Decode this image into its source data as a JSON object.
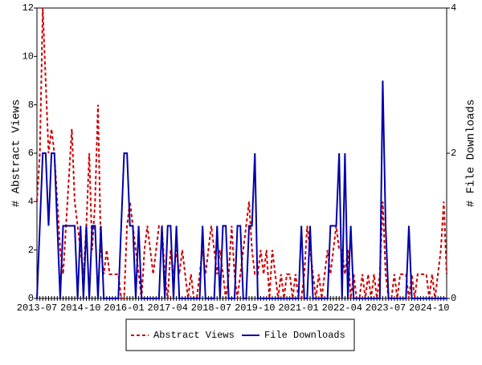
{
  "chart_data": {
    "type": "line",
    "y_label": "# Abstract Views",
    "y2_label": "# File Downloads",
    "categories": [
      "2013-07",
      null,
      null,
      null,
      null,
      null,
      null,
      null,
      null,
      null,
      null,
      null,
      null,
      null,
      null,
      "2014-10",
      null,
      null,
      null,
      null,
      null,
      null,
      null,
      null,
      null,
      null,
      null,
      null,
      null,
      null,
      "2016-01",
      null,
      null,
      null,
      null,
      null,
      null,
      null,
      null,
      null,
      null,
      null,
      null,
      null,
      null,
      "2017-04",
      null,
      null,
      null,
      null,
      null,
      null,
      null,
      null,
      null,
      null,
      null,
      null,
      null,
      null,
      "2018-07",
      null,
      null,
      null,
      null,
      null,
      null,
      null,
      null,
      null,
      null,
      null,
      null,
      null,
      null,
      "2019-10",
      null,
      null,
      null,
      null,
      null,
      null,
      null,
      null,
      null,
      null,
      null,
      null,
      null,
      null,
      "2021-01",
      null,
      null,
      null,
      null,
      null,
      null,
      null,
      null,
      null,
      null,
      null,
      null,
      null,
      null,
      "2022-04",
      null,
      null,
      null,
      null,
      null,
      null,
      null,
      null,
      null,
      null,
      null,
      null,
      null,
      null,
      "2023-07",
      null,
      null,
      null,
      null,
      null,
      null,
      null,
      null,
      null,
      null,
      null,
      null,
      null,
      null,
      "2024-10",
      null,
      null,
      null,
      null,
      null,
      null
    ],
    "series": [
      {
        "name": "Abstract Views",
        "color": "#cc0000",
        "dash": true,
        "values": [
          4,
          6,
          12,
          9,
          6,
          7,
          6,
          4,
          2,
          1,
          3,
          5,
          7,
          4,
          3,
          2,
          1,
          3,
          6,
          2,
          4,
          8,
          2,
          1,
          2,
          1,
          1,
          1,
          1,
          0,
          0,
          3,
          4,
          3,
          2,
          1,
          0,
          2,
          3,
          2,
          1,
          2,
          3,
          3,
          1,
          0,
          2,
          1,
          2,
          1,
          2,
          1,
          0,
          1,
          0,
          0,
          1,
          2,
          1,
          2,
          3,
          2,
          1,
          2,
          1,
          0,
          1,
          3,
          1,
          0,
          1,
          2,
          3,
          4,
          2,
          1,
          1,
          2,
          1,
          2,
          0,
          2,
          1,
          0,
          1,
          0,
          1,
          1,
          0,
          1,
          0,
          0,
          1,
          3,
          2,
          1,
          0,
          1,
          0,
          1,
          2,
          1,
          2,
          3,
          2,
          2,
          1,
          2,
          0,
          1,
          0,
          0,
          1,
          0,
          1,
          0,
          1,
          0,
          1,
          4,
          1,
          0,
          0,
          1,
          0,
          1,
          1,
          1,
          0,
          1,
          0,
          1,
          1,
          1,
          1,
          0,
          1,
          0,
          1,
          2,
          4,
          1
        ]
      },
      {
        "name": "File Downloads",
        "color": "#0000aa",
        "dash": false,
        "axis": "y2",
        "values": [
          0,
          1,
          2,
          2,
          1,
          2,
          2,
          1,
          0,
          1,
          1,
          1,
          1,
          1,
          0,
          1,
          0,
          1,
          0,
          1,
          1,
          0,
          1,
          0,
          0,
          0,
          0,
          0,
          0,
          1,
          2,
          2,
          1,
          1,
          0,
          1,
          0,
          0,
          0,
          0,
          0,
          0,
          0,
          1,
          0,
          1,
          1,
          0,
          1,
          0,
          0,
          0,
          0,
          0,
          0,
          0,
          0,
          1,
          0,
          0,
          0,
          0,
          1,
          0,
          1,
          1,
          0,
          0,
          0,
          1,
          1,
          0,
          0,
          1,
          1,
          2,
          0,
          0,
          0,
          0,
          0,
          0,
          0,
          0,
          0,
          0,
          0,
          0,
          0,
          0,
          0,
          1,
          0,
          0,
          1,
          0,
          0,
          0,
          0,
          0,
          0,
          1,
          1,
          1,
          2,
          0,
          2,
          0,
          1,
          0,
          0,
          0,
          0,
          0,
          0,
          0,
          0,
          0,
          0,
          3,
          1,
          0,
          0,
          0,
          0,
          0,
          0,
          0,
          1,
          0,
          0,
          0,
          0,
          0,
          0,
          0,
          0,
          0,
          0,
          0,
          0,
          0
        ]
      }
    ],
    "ylim": [
      0,
      12
    ],
    "yticks": [
      0,
      2,
      4,
      6,
      8,
      10,
      12
    ],
    "y2lim": [
      0,
      4
    ],
    "y2ticks": [
      0,
      2,
      4
    ]
  }
}
